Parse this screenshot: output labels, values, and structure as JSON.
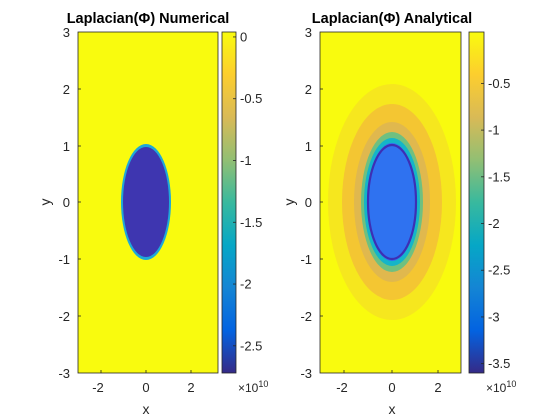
{
  "chart_data": [
    {
      "type": "heatmap",
      "title": "Laplacian(Φ) Numerical",
      "xlabel": "x",
      "ylabel": "y",
      "xlim": [
        -3,
        3
      ],
      "ylim": [
        -3,
        3
      ],
      "xticks": [
        "-2",
        "0",
        "2"
      ],
      "yticks": [
        "3",
        "2",
        "1",
        "0",
        "-1",
        "-2",
        "-3"
      ],
      "colorbar": {
        "ticks": [
          "0",
          "-0.5",
          "-1",
          "-1.5",
          "-2",
          "-2.5"
        ],
        "range": [
          -2.72,
          0.04
        ],
        "exponent_label": "×10",
        "exponent_power": "10",
        "colormap": "parula"
      },
      "region": {
        "shape": "ellipse",
        "center": [
          0,
          0
        ],
        "semi_axis_x": 0.85,
        "semi_axis_y": 1.0,
        "inside_value": -2.65,
        "outside_value": 0
      }
    },
    {
      "type": "heatmap",
      "title": "Laplacian(Φ) Analytical",
      "xlabel": "x",
      "ylabel": "y",
      "xlim": [
        -3,
        3
      ],
      "ylim": [
        -3,
        3
      ],
      "xticks": [
        "-2",
        "0",
        "2"
      ],
      "yticks": [
        "3",
        "2",
        "1",
        "0",
        "-1",
        "-2",
        "-3"
      ],
      "colorbar": {
        "ticks": [
          "-0.5",
          "-1",
          "-1.5",
          "-2",
          "-2.5",
          "-3",
          "-3.5"
        ],
        "range": [
          -3.6,
          0.05
        ],
        "exponent_label": "×10",
        "exponent_power": "10",
        "colormap": "parula"
      },
      "region": {
        "shape": "ellipse",
        "center": [
          0,
          0
        ],
        "semi_axis_x": 0.85,
        "semi_axis_y": 1.0,
        "inside_value": -2.75,
        "ring_value": -3.5,
        "outside_value": 0
      }
    }
  ]
}
